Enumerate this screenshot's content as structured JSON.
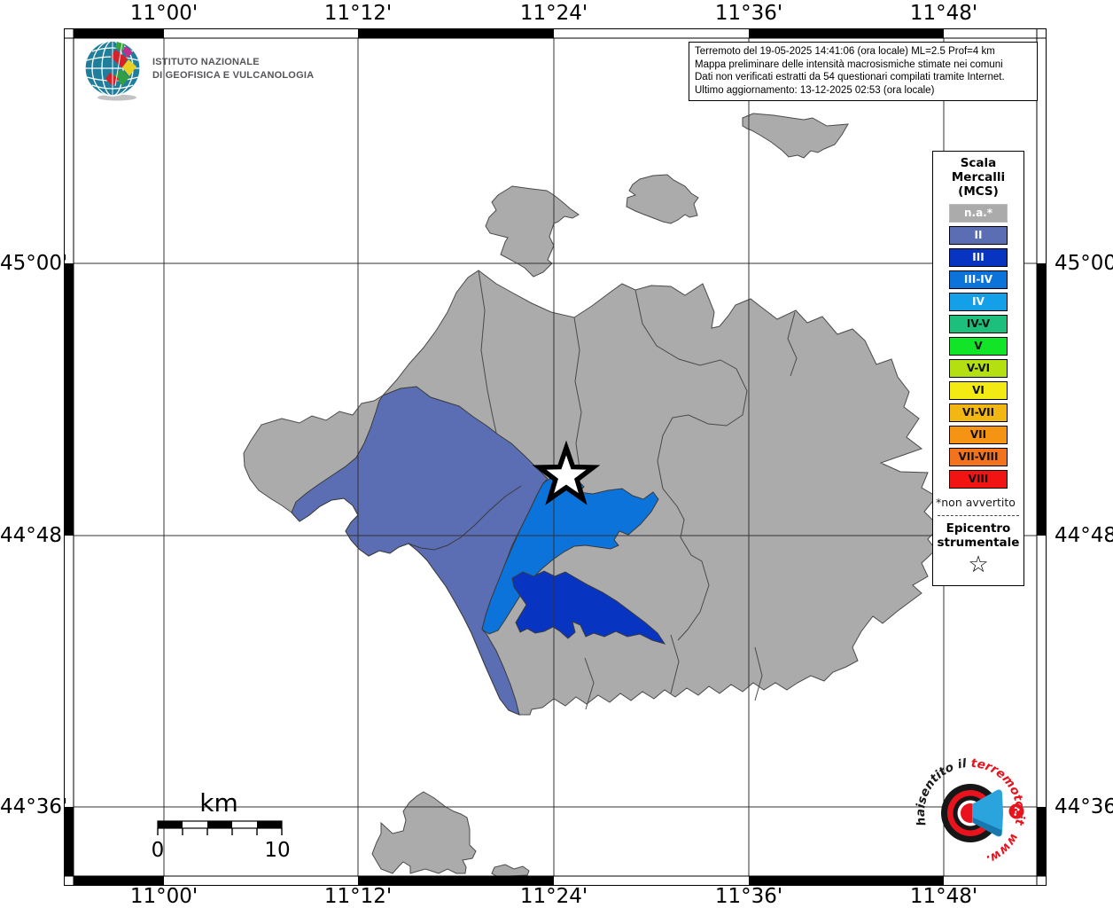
{
  "header": {
    "ingv_line1": "ISTITUTO NAZIONALE",
    "ingv_line2": "DI GEOFISICA E VULCANOLOGIA",
    "info_lines": [
      "Terremoto del 19-05-2025 14:41:06 (ora locale) ML=2.5 Prof=4 km",
      "Mappa preliminare delle intensità macrosismiche stimate nei comuni",
      "Dati non verificati estratti da 54 questionari compilati tramite Internet.",
      "Ultimo aggiornamento: 13-12-2025 02:53 (ora locale)"
    ]
  },
  "axes": {
    "top": [
      "11°00'",
      "11°12'",
      "11°24'",
      "11°36'",
      "11°48'"
    ],
    "bottom": [
      "11°00'",
      "11°12'",
      "11°24'",
      "11°36'",
      "11°48'"
    ],
    "left": [
      "45°00'",
      "44°48'",
      "44°36'"
    ],
    "right": [
      "45°00'",
      "44°48'",
      "44°36'"
    ]
  },
  "legend": {
    "title_lines": [
      "Scala",
      "Mercalli",
      "(MCS)"
    ],
    "items": [
      {
        "label": "n.a.*",
        "color": "#ababab",
        "text_color": "#ffffff",
        "border": "#bbbbbb"
      },
      {
        "label": "II",
        "color": "#5b6eb3",
        "text_color": "#ffffff",
        "border": "#000000"
      },
      {
        "label": "III",
        "color": "#0834c2",
        "text_color": "#ffffff",
        "border": "#000000"
      },
      {
        "label": "III-IV",
        "color": "#0b73da",
        "text_color": "#ffffff",
        "border": "#000000"
      },
      {
        "label": "IV",
        "color": "#14a0e8",
        "text_color": "#ffffff",
        "border": "#000000"
      },
      {
        "label": "IV-V",
        "color": "#1dbf7d",
        "text_color": "#111111",
        "border": "#000000"
      },
      {
        "label": "V",
        "color": "#12e527",
        "text_color": "#111111",
        "border": "#000000"
      },
      {
        "label": "V-VI",
        "color": "#b4df11",
        "text_color": "#111111",
        "border": "#000000"
      },
      {
        "label": "VI",
        "color": "#f2ea12",
        "text_color": "#111111",
        "border": "#000000"
      },
      {
        "label": "VI-VII",
        "color": "#f2b713",
        "text_color": "#111111",
        "border": "#000000"
      },
      {
        "label": "VII",
        "color": "#f59413",
        "text_color": "#111111",
        "border": "#000000"
      },
      {
        "label": "VII-VIII",
        "color": "#f2731c",
        "text_color": "#111111",
        "border": "#000000"
      },
      {
        "label": "VIII",
        "color": "#f21313",
        "text_color": "#111111",
        "border": "#000000"
      }
    ],
    "footnote": "*non avvertito",
    "epicenter_line1": "Epicentro",
    "epicenter_line2": "strumentale",
    "epicenter_symbol": "☆"
  },
  "scalebar": {
    "unit": "km",
    "start": "0",
    "end": "10"
  },
  "watermark": {
    "text_black": "haisentito",
    "text_il": "il",
    "text_red": "terremoto.it",
    "text_www": "www.",
    "question_mark": "?"
  },
  "map": {
    "land_color": "#ababab",
    "boundary_color": "#4a4a4a",
    "shaded_regions": [
      {
        "intensity": "II"
      },
      {
        "intensity": "III"
      },
      {
        "intensity": "III-IV"
      }
    ]
  }
}
